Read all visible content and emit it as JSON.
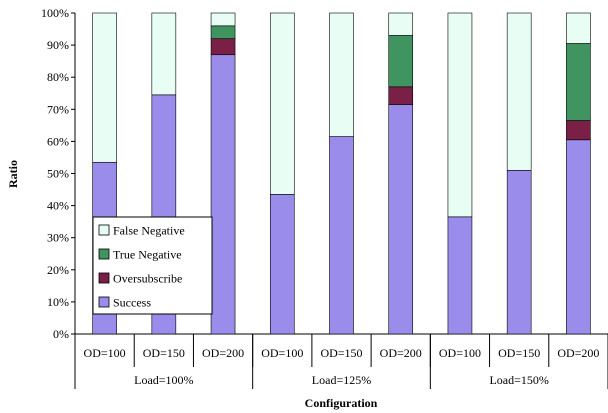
{
  "chart_data": {
    "type": "bar",
    "stacked": true,
    "xlabel": "Configuration",
    "ylabel": "Ratio",
    "ylim": [
      0,
      100
    ],
    "yticks": [
      "0%",
      "10%",
      "20%",
      "30%",
      "40%",
      "50%",
      "60%",
      "70%",
      "80%",
      "90%",
      "100%"
    ],
    "grid": false,
    "legend_position": "lower-left (inside plot)",
    "categories": [
      "OD=100",
      "OD=150",
      "OD=200",
      "OD=100",
      "OD=150",
      "OD=200",
      "OD=100",
      "OD=150",
      "OD=200"
    ],
    "groups": [
      {
        "label": "Load=100%",
        "span": 3
      },
      {
        "label": "Load=125%",
        "span": 3
      },
      {
        "label": "Load=150%",
        "span": 3
      }
    ],
    "series": [
      {
        "name": "Success",
        "color": "#9a8cea",
        "values": [
          53.5,
          74.5,
          87,
          43.5,
          61.5,
          71.5,
          36.5,
          51,
          60.5
        ]
      },
      {
        "name": "Oversubscribe",
        "color": "#7a1f45",
        "values": [
          0,
          0,
          5,
          0,
          0,
          5.5,
          0,
          0,
          6
        ]
      },
      {
        "name": "True Negative",
        "color": "#3f9460",
        "values": [
          0,
          0,
          4,
          0,
          0,
          16,
          0,
          0,
          24
        ]
      },
      {
        "name": "False Negative",
        "color": "#e8fdf4",
        "values": [
          46.5,
          25.5,
          4,
          56.5,
          38.5,
          7,
          63.5,
          49,
          9.5
        ]
      }
    ],
    "legend_order": [
      "False Negative",
      "True Negative",
      "Oversubscribe",
      "Success"
    ]
  }
}
